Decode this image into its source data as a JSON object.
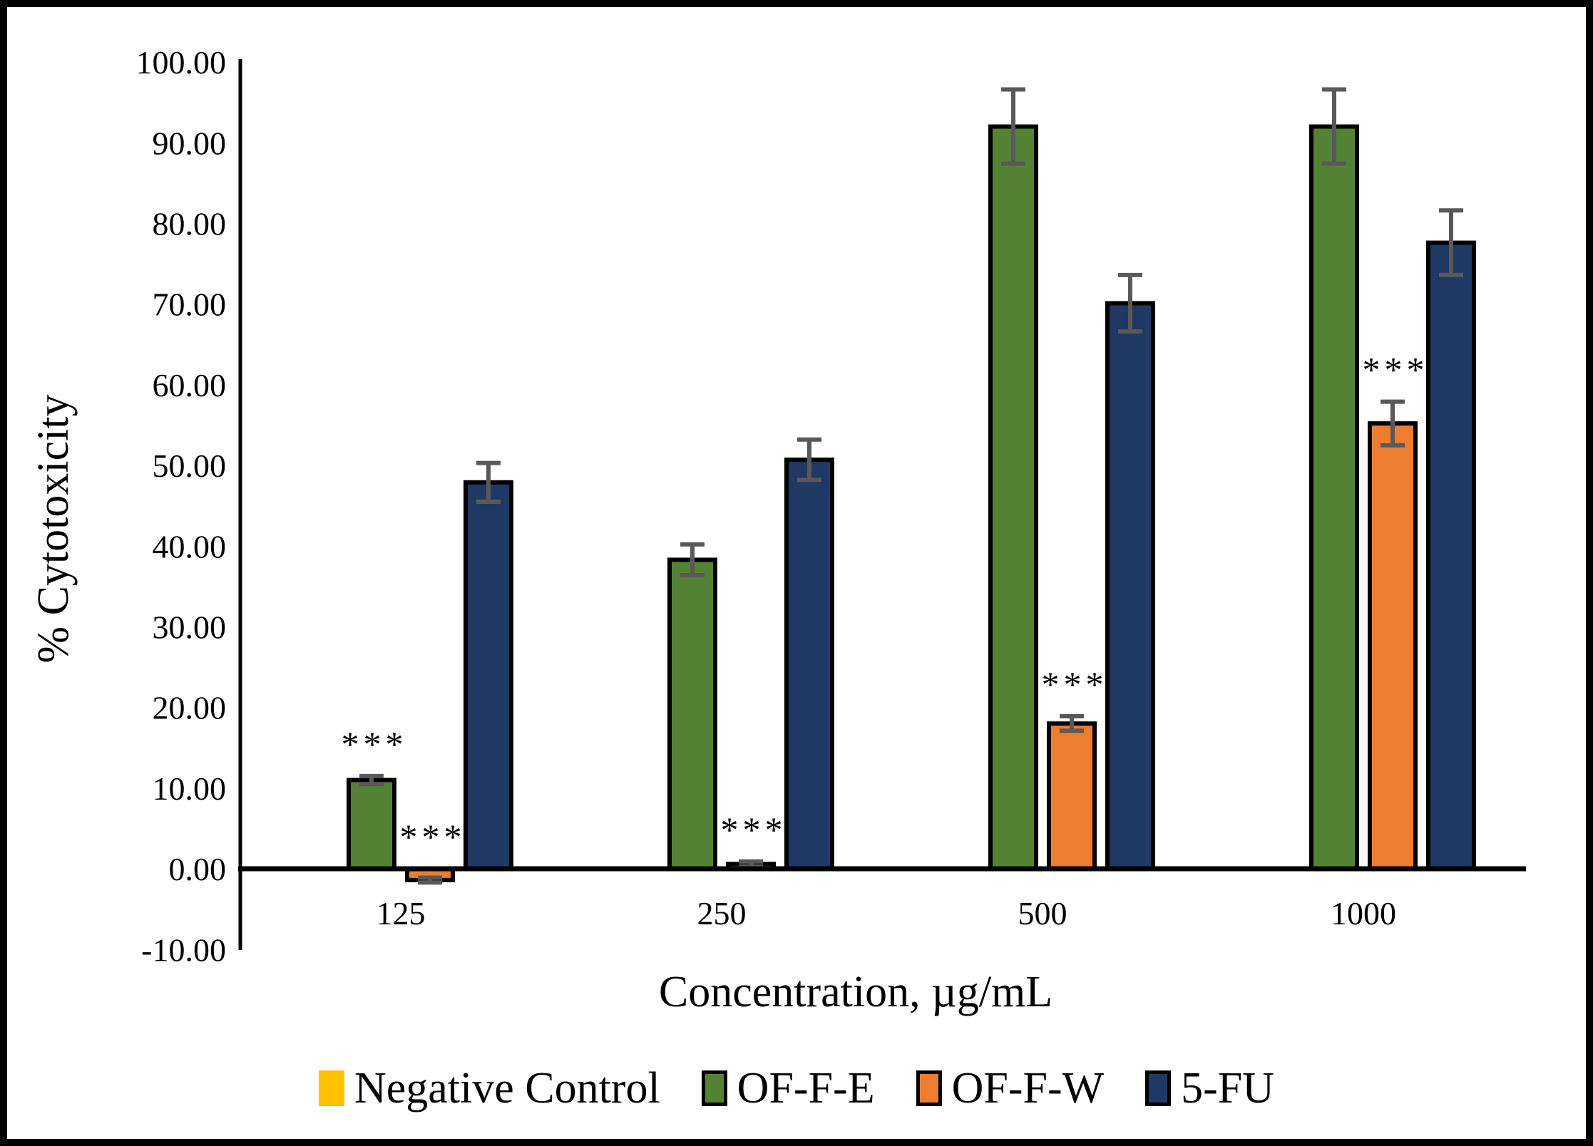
{
  "figure": {
    "background": "#FFFFFF",
    "border_color": "#000000",
    "error_bar_color": "#595959",
    "bar_outline_color": "#000000"
  },
  "chart_data": {
    "type": "bar",
    "title": "",
    "xlabel": "Concentration, µg/mL",
    "ylabel": "% Cytotoxicity",
    "categories": [
      "125",
      "250",
      "500",
      "1000"
    ],
    "x_axis_title": "Concentration, µg/mL",
    "y_axis": {
      "min": -10,
      "max": 100,
      "step": 10,
      "ticks": [
        {
          "v": 100,
          "label": "100.00"
        },
        {
          "v": 90,
          "label": "90.00"
        },
        {
          "v": 80,
          "label": "80.00"
        },
        {
          "v": 70,
          "label": "70.00"
        },
        {
          "v": 60,
          "label": "60.00"
        },
        {
          "v": 50,
          "label": "50.00"
        },
        {
          "v": 40,
          "label": "40.00"
        },
        {
          "v": 30,
          "label": "30.00"
        },
        {
          "v": 20,
          "label": "20.00"
        },
        {
          "v": 10,
          "label": "10.00"
        },
        {
          "v": 0,
          "label": "0.00"
        },
        {
          "v": -10,
          "label": "-10.00"
        }
      ]
    },
    "grid": false,
    "legend_position": "bottom",
    "series": [
      {
        "name": "Negative Control",
        "color": "#FFC000",
        "outlined": false,
        "values": [
          0,
          0,
          0,
          0
        ],
        "errors": [
          0,
          0,
          0,
          0
        ],
        "sig": [
          null,
          null,
          null,
          null
        ]
      },
      {
        "name": "OF-F-E",
        "color": "#548235",
        "outlined": true,
        "values": [
          11.0,
          38.3,
          92.0,
          92.0
        ],
        "errors": [
          0.5,
          1.9,
          4.6,
          4.6
        ],
        "sig": [
          "***",
          null,
          null,
          null
        ]
      },
      {
        "name": "OF-F-W",
        "color": "#ED7D31",
        "outlined": true,
        "values": [
          -1.4,
          0.6,
          18.0,
          55.2
        ],
        "errors": [
          0.3,
          0.3,
          0.9,
          2.7
        ],
        "sig": [
          "***",
          "***",
          "***",
          "***"
        ]
      },
      {
        "name": "5-FU",
        "color": "#203864",
        "outlined": true,
        "values": [
          47.9,
          50.7,
          70.1,
          77.6
        ],
        "errors": [
          2.4,
          2.5,
          3.5,
          4.0
        ],
        "sig": [
          null,
          null,
          null,
          null
        ]
      }
    ]
  }
}
